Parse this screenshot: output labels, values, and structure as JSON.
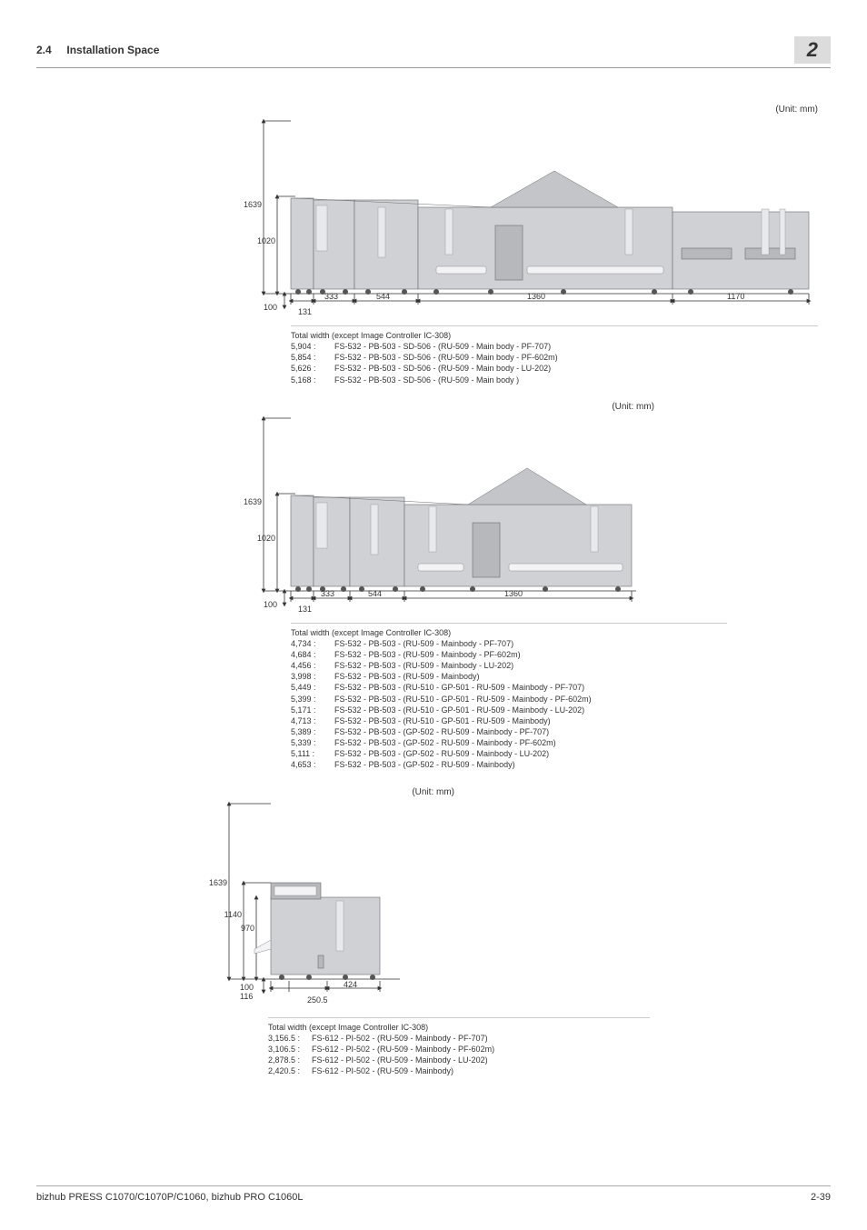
{
  "header": {
    "section_number": "2.4",
    "section_title": "Installation Space",
    "chapter_num": "2"
  },
  "unit_text": "(Unit: mm)",
  "diagram1": {
    "v_outer": "1639",
    "v_inner": "1020",
    "v_base": "100",
    "w1": "131",
    "w2": "333",
    "w3": "544",
    "w4": "1360",
    "w5": "1170",
    "title": "Total width (except Image Controller IC-308)",
    "configs": [
      {
        "val": "5,904 :",
        "txt": "FS-532 - PB-503 - SD-506 - (RU-509 - Main body - PF-707)"
      },
      {
        "val": "5,854 :",
        "txt": "FS-532 - PB-503 - SD-506 - (RU-509 - Main body - PF-602m)"
      },
      {
        "val": "5,626 :",
        "txt": "FS-532 - PB-503 - SD-506 - (RU-509 - Main body - LU-202)"
      },
      {
        "val": "5,168 :",
        "txt": "FS-532 - PB-503 - SD-506 - (RU-509 - Main body )"
      }
    ]
  },
  "diagram2": {
    "v_outer": "1639",
    "v_inner": "1020",
    "v_base": "100",
    "w1": "131",
    "w2": "333",
    "w3": "544",
    "w4": "1360",
    "title": "Total width (except Image Controller IC-308)",
    "configs": [
      {
        "val": "4,734 :",
        "txt": "FS-532 - PB-503 - (RU-509 - Mainbody - PF-707)"
      },
      {
        "val": "4,684 :",
        "txt": "FS-532 - PB-503 - (RU-509 - Mainbody - PF-602m)"
      },
      {
        "val": "4,456 :",
        "txt": "FS-532 - PB-503 - (RU-509 - Mainbody - LU-202)"
      },
      {
        "val": "3,998 :",
        "txt": "FS-532 - PB-503 - (RU-509 - Mainbody)"
      },
      {
        "val": "5,449 :",
        "txt": "FS-532 - PB-503 - (RU-510 - GP-501 - RU-509 - Mainbody - PF-707)"
      },
      {
        "val": "5,399 :",
        "txt": "FS-532 - PB-503 - (RU-510 - GP-501 - RU-509 - Mainbody - PF-602m)"
      },
      {
        "val": "5,171 :",
        "txt": "FS-532 - PB-503 - (RU-510 - GP-501 - RU-509 - Mainbody - LU-202)"
      },
      {
        "val": "4,713 :",
        "txt": "FS-532 - PB-503 - (RU-510 - GP-501 - RU-509 - Mainbody)"
      },
      {
        "val": "5,389 :",
        "txt": "FS-532 - PB-503 - (GP-502 - RU-509 - Mainbody - PF-707)"
      },
      {
        "val": "5,339 :",
        "txt": "FS-532 - PB-503 - (GP-502 - RU-509 - Mainbody - PF-602m)"
      },
      {
        "val": "5,111 :",
        "txt": "FS-532 - PB-503 - (GP-502 - RU-509 - Mainbody - LU-202)"
      },
      {
        "val": "4,653 :",
        "txt": "FS-532 - PB-503 - (GP-502 - RU-509 - Mainbody)"
      }
    ]
  },
  "diagram3": {
    "v_outer": "1639",
    "v_mid": "1140",
    "v_inner": "970",
    "v_base": "100",
    "v_base2": "116",
    "w1": "250.5",
    "w2": "424",
    "title": "Total width (except Image Controller IC-308)",
    "configs": [
      {
        "val": "3,156.5 :",
        "txt": "FS-612 - PI-502 - (RU-509 - Mainbody - PF-707)"
      },
      {
        "val": "3,106.5 :",
        "txt": "FS-612 - PI-502 - (RU-509 - Mainbody - PF-602m)"
      },
      {
        "val": "2,878.5 :",
        "txt": "FS-612 - PI-502 - (RU-509 - Mainbody - LU-202)"
      },
      {
        "val": "2,420.5 :",
        "txt": "FS-612 - PI-502 - (RU-509 - Mainbody)"
      }
    ]
  },
  "footer": {
    "left": "bizhub PRESS C1070/C1070P/C1060, bizhub PRO C1060L",
    "right": "2-39"
  },
  "colors": {
    "body": "#d0d1d4",
    "dark": "#b7b8bb",
    "light": "#f3f3f5",
    "stroke": "#6a6b6e"
  }
}
